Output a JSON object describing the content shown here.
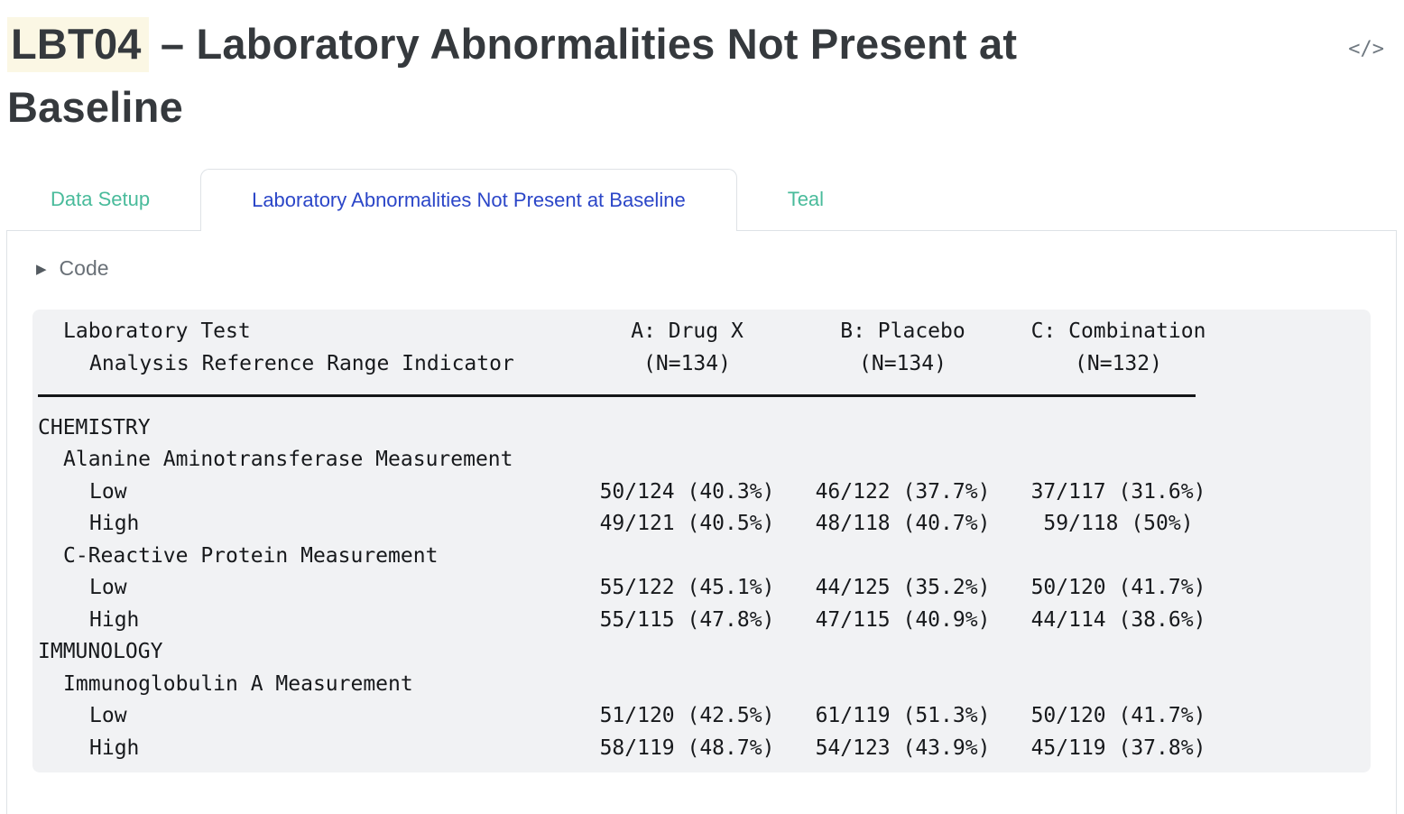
{
  "header": {
    "title_code": "LBT04",
    "title_rest": " – Laboratory Abnormalities Not Present at Baseline",
    "code_icon_text": "</>"
  },
  "tabs": [
    {
      "label": "Data Setup",
      "active": false
    },
    {
      "label": "Laboratory Abnormalities Not Present at Baseline",
      "active": true
    },
    {
      "label": "Teal",
      "active": false
    }
  ],
  "code_section": {
    "triangle": "▶",
    "label": "Code",
    "collapsed": true
  },
  "colors": {
    "accent_teal": "#49bb9b",
    "active_tab_blue": "#2b46c8",
    "highlight": "#fbf7e4",
    "table_bg": "#f1f2f4",
    "border": "#dee2e6"
  },
  "table": {
    "header_rows": [
      {
        "label": "Laboratory Test",
        "cols": [
          "A: Drug X",
          "B: Placebo",
          "C: Combination"
        ]
      },
      {
        "label": "Analysis Reference Range Indicator",
        "cols": [
          "(N=134)",
          "(N=134)",
          "(N=132)"
        ]
      }
    ],
    "rows": [
      {
        "label": "CHEMISTRY",
        "cols": [
          "",
          "",
          ""
        ]
      },
      {
        "label": "Alanine Aminotransferase Measurement",
        "cols": [
          "",
          "",
          ""
        ]
      },
      {
        "label": "Low",
        "cols": [
          "50/124 (40.3%)",
          "46/122 (37.7%)",
          "37/117 (31.6%)"
        ]
      },
      {
        "label": "High",
        "cols": [
          "49/121 (40.5%)",
          "48/118 (40.7%)",
          "59/118 (50%)"
        ]
      },
      {
        "label": "C-Reactive Protein Measurement",
        "cols": [
          "",
          "",
          ""
        ]
      },
      {
        "label": "Low",
        "cols": [
          "55/122 (45.1%)",
          "44/125 (35.2%)",
          "50/120 (41.7%)"
        ]
      },
      {
        "label": "High",
        "cols": [
          "55/115 (47.8%)",
          "47/115 (40.9%)",
          "44/114 (38.6%)"
        ]
      },
      {
        "label": "IMMUNOLOGY",
        "cols": [
          "",
          "",
          ""
        ]
      },
      {
        "label": "Immunoglobulin A Measurement",
        "cols": [
          "",
          "",
          ""
        ]
      },
      {
        "label": "Low",
        "cols": [
          "51/120 (42.5%)",
          "61/119 (51.3%)",
          "50/120 (41.7%)"
        ]
      },
      {
        "label": "High",
        "cols": [
          "58/119 (48.7%)",
          "54/123 (43.9%)",
          "45/119 (37.8%)"
        ]
      }
    ]
  }
}
